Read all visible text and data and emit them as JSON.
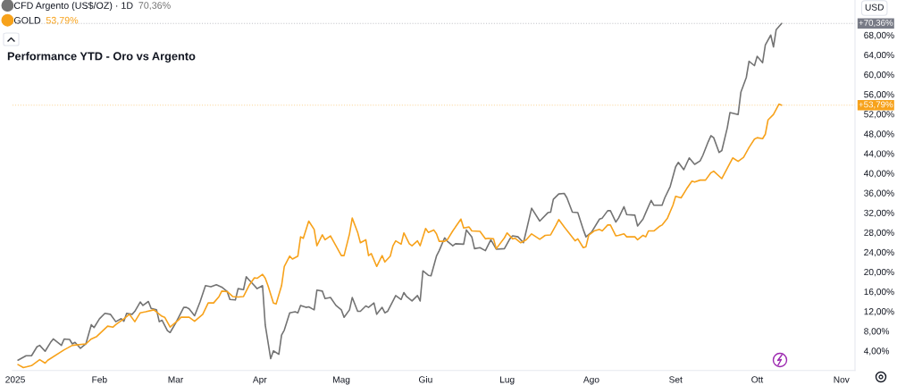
{
  "chart_data": {
    "type": "line",
    "title": "Performance YTD - Oro vs Argento",
    "ylabel": "USD",
    "legend": "top left",
    "xlim": [
      "2024-12-31",
      "2025-11-06"
    ],
    "xticks": [
      {
        "value": "2025-01-01",
        "label": "2025"
      },
      {
        "value": "2025-02-01",
        "label": "Feb"
      },
      {
        "value": "2025-03-01",
        "label": "Mar"
      },
      {
        "value": "2025-04-01",
        "label": "Apr"
      },
      {
        "value": "2025-05-01",
        "label": "Mag"
      },
      {
        "value": "2025-06-01",
        "label": "Giu"
      },
      {
        "value": "2025-07-01",
        "label": "Lug"
      },
      {
        "value": "2025-08-01",
        "label": "Ago"
      },
      {
        "value": "2025-09-01",
        "label": "Set"
      },
      {
        "value": "2025-10-01",
        "label": "Ott"
      },
      {
        "value": "2025-11-01",
        "label": "Nov"
      }
    ],
    "ylim": [
      0,
      75
    ],
    "yticks": [
      {
        "value": 4,
        "label": "4,00%"
      },
      {
        "value": 8,
        "label": "8,00%"
      },
      {
        "value": 12,
        "label": "12,00%"
      },
      {
        "value": 16,
        "label": "16,00%"
      },
      {
        "value": 20,
        "label": "20,00%"
      },
      {
        "value": 24,
        "label": "24,00%"
      },
      {
        "value": 28,
        "label": "28,00%"
      },
      {
        "value": 32,
        "label": "32,00%"
      },
      {
        "value": 36,
        "label": "36,00%"
      },
      {
        "value": 40,
        "label": "40,00%"
      },
      {
        "value": 44,
        "label": "44,00%"
      },
      {
        "value": 48,
        "label": "48,00%"
      },
      {
        "value": 52,
        "label": "52,00%"
      },
      {
        "value": 56,
        "label": "56,00%"
      },
      {
        "value": 60,
        "label": "60,00%"
      },
      {
        "value": 64,
        "label": "64,00%"
      },
      {
        "value": 68,
        "label": "68,00%"
      }
    ],
    "ref_lines": [
      {
        "axis": "y",
        "value": 70.36,
        "label": "+70,36%",
        "color": "#787b86",
        "line_style": "dotted"
      },
      {
        "axis": "y",
        "value": 53.79,
        "label": "+53,79%",
        "color": "#f7a21b",
        "line_style": "dotted"
      }
    ],
    "annotations": [
      "70,36%",
      "53,79%"
    ],
    "series": [
      {
        "name": "CFD Argento (US$/OZ) · 1D",
        "color": "#737373",
        "x": [
          "2025-01-02",
          "2025-01-05",
          "2025-01-07",
          "2025-01-09",
          "2025-01-10",
          "2025-01-12",
          "2025-01-14",
          "2025-01-15",
          "2025-01-18",
          "2025-01-19",
          "2025-01-21",
          "2025-01-22",
          "2025-01-23",
          "2025-01-25",
          "2025-01-27",
          "2025-01-29",
          "2025-01-30",
          "2025-02-01",
          "2025-02-03",
          "2025-02-05",
          "2025-02-07",
          "2025-02-09",
          "2025-02-10",
          "2025-02-11",
          "2025-02-13",
          "2025-02-14",
          "2025-02-16",
          "2025-02-17",
          "2025-02-19",
          "2025-02-20",
          "2025-02-22",
          "2025-02-23",
          "2025-02-24",
          "2025-02-26",
          "2025-02-27",
          "2025-03-01",
          "2025-03-04",
          "2025-03-05",
          "2025-03-06",
          "2025-03-08",
          "2025-03-10",
          "2025-03-12",
          "2025-03-14",
          "2025-03-16",
          "2025-03-18",
          "2025-03-20",
          "2025-03-21",
          "2025-03-23",
          "2025-03-24",
          "2025-03-26",
          "2025-03-27",
          "2025-03-28",
          "2025-03-30",
          "2025-03-31",
          "2025-04-02",
          "2025-04-03",
          "2025-04-05",
          "2025-04-06",
          "2025-04-08",
          "2025-04-09",
          "2025-04-10",
          "2025-04-12",
          "2025-04-14",
          "2025-04-15",
          "2025-04-16",
          "2025-04-18",
          "2025-04-19",
          "2025-04-21",
          "2025-04-22",
          "2025-04-24",
          "2025-04-25",
          "2025-04-27",
          "2025-04-29",
          "2025-05-01",
          "2025-05-02",
          "2025-05-04",
          "2025-05-05",
          "2025-05-07",
          "2025-05-08",
          "2025-05-10",
          "2025-05-11",
          "2025-05-13",
          "2025-05-14",
          "2025-05-16",
          "2025-05-17",
          "2025-05-18",
          "2025-05-20",
          "2025-05-21",
          "2025-05-23",
          "2025-05-24",
          "2025-05-25",
          "2025-05-27",
          "2025-05-29",
          "2025-05-30",
          "2025-05-31",
          "2025-06-02",
          "2025-06-03",
          "2025-06-05",
          "2025-06-06",
          "2025-06-08",
          "2025-06-09",
          "2025-06-11",
          "2025-06-12",
          "2025-06-15",
          "2025-06-16",
          "2025-06-18",
          "2025-06-19",
          "2025-06-21",
          "2025-06-23",
          "2025-06-25",
          "2025-06-27",
          "2025-06-30",
          "2025-07-02",
          "2025-07-03",
          "2025-07-05",
          "2025-07-07",
          "2025-07-08",
          "2025-07-10",
          "2025-07-13",
          "2025-07-16",
          "2025-07-17",
          "2025-07-18",
          "2025-07-20",
          "2025-07-22",
          "2025-07-23",
          "2025-07-25",
          "2025-07-27",
          "2025-07-29",
          "2025-07-30",
          "2025-08-01",
          "2025-08-04",
          "2025-08-05",
          "2025-08-07",
          "2025-08-08",
          "2025-08-10",
          "2025-08-11",
          "2025-08-13",
          "2025-08-14",
          "2025-08-17",
          "2025-08-18",
          "2025-08-20",
          "2025-08-21",
          "2025-08-23",
          "2025-08-24",
          "2025-08-27",
          "2025-08-28",
          "2025-08-30",
          "2025-09-01",
          "2025-09-02",
          "2025-09-04",
          "2025-09-06",
          "2025-09-08",
          "2025-09-10",
          "2025-09-11",
          "2025-09-13",
          "2025-09-14",
          "2025-09-15",
          "2025-09-17",
          "2025-09-18",
          "2025-09-20",
          "2025-09-21",
          "2025-09-24",
          "2025-09-25",
          "2025-09-27",
          "2025-09-28",
          "2025-09-30",
          "2025-10-01",
          "2025-10-03",
          "2025-10-04",
          "2025-10-06",
          "2025-10-07",
          "2025-10-08",
          "2025-10-10"
        ],
        "values": [
          2.1,
          3.0,
          3.0,
          4.8,
          5.1,
          3.9,
          5.7,
          6.4,
          5.1,
          6.4,
          6.3,
          5.4,
          5.7,
          4.5,
          5.4,
          9.3,
          8.7,
          10.5,
          11.6,
          11.4,
          9.9,
          10.5,
          10.0,
          11.6,
          11.4,
          12.0,
          13.9,
          13.2,
          14.0,
          12.6,
          12.3,
          9.9,
          10.2,
          8.1,
          7.7,
          9.6,
          12.8,
          12.8,
          12.5,
          11.1,
          13.9,
          17.2,
          17.0,
          17.4,
          16.9,
          16.0,
          14.4,
          14.3,
          16.6,
          16.4,
          19.0,
          18.4,
          17.2,
          16.6,
          17.2,
          9.2,
          2.4,
          4.0,
          3.3,
          7.2,
          8.2,
          11.7,
          11.9,
          11.7,
          13.2,
          12.8,
          12.9,
          12.3,
          16.3,
          16.1,
          14.6,
          14.8,
          13.2,
          12.3,
          10.8,
          12.3,
          14.8,
          12.0,
          12.0,
          13.1,
          12.8,
          13.7,
          11.4,
          12.8,
          11.7,
          12.0,
          14.1,
          15.2,
          14.4,
          15.8,
          15.0,
          14.1,
          15.2,
          14.1,
          20.2,
          19.3,
          19.2,
          23.2,
          24.3,
          26.9,
          26.2,
          25.3,
          25.7,
          25.6,
          28.5,
          27.1,
          24.7,
          24.9,
          24.3,
          26.5,
          24.6,
          24.7,
          26.7,
          27.3,
          27.1,
          25.9,
          28.2,
          32.9,
          30.3,
          32.0,
          32.1,
          34.7,
          35.8,
          35.9,
          35.0,
          32.1,
          32.0,
          28.6,
          27.1,
          28.0,
          30.7,
          30.9,
          32.4,
          32.4,
          30.1,
          30.9,
          33.2,
          31.6,
          31.5,
          29.3,
          30.7,
          32.0,
          34.5,
          33.5,
          33.5,
          35.0,
          37.3,
          41.3,
          42.2,
          40.7,
          43.1,
          41.8,
          42.5,
          43.6,
          46.4,
          47.6,
          47.2,
          44.2,
          44.6,
          49.2,
          52.3,
          51.9,
          56.4,
          59.4,
          62.7,
          61.8,
          63.7,
          62.4,
          66.0,
          68.0,
          65.6,
          69.1,
          70.36
        ]
      },
      {
        "name": "GOLD",
        "color": "#f7a21b",
        "x": [
          "2025-01-02",
          "2025-01-04",
          "2025-01-07",
          "2025-01-10",
          "2025-01-12",
          "2025-01-13",
          "2025-01-19",
          "2025-01-22",
          "2025-01-27",
          "2025-01-29",
          "2025-01-31",
          "2025-02-04",
          "2025-02-06",
          "2025-02-07",
          "2025-02-10",
          "2025-02-12",
          "2025-02-14",
          "2025-02-16",
          "2025-02-18",
          "2025-02-21",
          "2025-02-24",
          "2025-02-25",
          "2025-02-27",
          "2025-03-02",
          "2025-03-03",
          "2025-03-06",
          "2025-03-08",
          "2025-03-11",
          "2025-03-13",
          "2025-03-15",
          "2025-03-17",
          "2025-03-18",
          "2025-03-20",
          "2025-03-22",
          "2025-03-24",
          "2025-03-26",
          "2025-03-28",
          "2025-03-30",
          "2025-03-31",
          "2025-04-02",
          "2025-04-03",
          "2025-04-04",
          "2025-04-06",
          "2025-04-07",
          "2025-04-09",
          "2025-04-10",
          "2025-04-12",
          "2025-04-13",
          "2025-04-15",
          "2025-04-16",
          "2025-04-17",
          "2025-04-19",
          "2025-04-21",
          "2025-04-22",
          "2025-04-24",
          "2025-04-25",
          "2025-04-27",
          "2025-04-29",
          "2025-05-01",
          "2025-05-02",
          "2025-05-04",
          "2025-05-05",
          "2025-05-07",
          "2025-05-08",
          "2025-05-10",
          "2025-05-11",
          "2025-05-12",
          "2025-05-14",
          "2025-05-16",
          "2025-05-17",
          "2025-05-19",
          "2025-05-20",
          "2025-05-21",
          "2025-05-23",
          "2025-05-24",
          "2025-05-26",
          "2025-05-27",
          "2025-05-29",
          "2025-05-30",
          "2025-06-01",
          "2025-06-02",
          "2025-06-04",
          "2025-06-05",
          "2025-06-06",
          "2025-06-08",
          "2025-06-09",
          "2025-06-11",
          "2025-06-14",
          "2025-06-15",
          "2025-06-17",
          "2025-06-18",
          "2025-06-21",
          "2025-06-23",
          "2025-06-24",
          "2025-06-26",
          "2025-06-27",
          "2025-06-30",
          "2025-07-01",
          "2025-07-03",
          "2025-07-04",
          "2025-07-06",
          "2025-07-08",
          "2025-07-10",
          "2025-07-13",
          "2025-07-15",
          "2025-07-17",
          "2025-07-19",
          "2025-07-20",
          "2025-07-22",
          "2025-07-24",
          "2025-07-26",
          "2025-07-27",
          "2025-07-29",
          "2025-07-30",
          "2025-07-31",
          "2025-08-02",
          "2025-08-04",
          "2025-08-05",
          "2025-08-07",
          "2025-08-08",
          "2025-08-10",
          "2025-08-11",
          "2025-08-13",
          "2025-08-14",
          "2025-08-17",
          "2025-08-18",
          "2025-08-20",
          "2025-08-21",
          "2025-08-22",
          "2025-08-24",
          "2025-08-26",
          "2025-08-27",
          "2025-08-29",
          "2025-08-31",
          "2025-09-01",
          "2025-09-03",
          "2025-09-05",
          "2025-09-07",
          "2025-09-08",
          "2025-09-10",
          "2025-09-12",
          "2025-09-14",
          "2025-09-15",
          "2025-09-18",
          "2025-09-20",
          "2025-09-22",
          "2025-09-24",
          "2025-09-26",
          "2025-09-28",
          "2025-09-30",
          "2025-10-01",
          "2025-10-03",
          "2025-10-04",
          "2025-10-05",
          "2025-10-07",
          "2025-10-09",
          "2025-10-10"
        ],
        "values": [
          1.2,
          0.6,
          1.0,
          2.2,
          1.5,
          2.1,
          4.2,
          5.1,
          5.4,
          6.4,
          6.9,
          9.0,
          8.8,
          9.3,
          10.5,
          11.4,
          9.9,
          11.7,
          11.9,
          12.3,
          11.0,
          10.8,
          8.8,
          10.2,
          10.8,
          10.8,
          10.0,
          11.4,
          13.7,
          13.7,
          15.0,
          16.1,
          16.0,
          15.0,
          14.9,
          15.0,
          17.2,
          18.8,
          18.7,
          19.5,
          18.7,
          17.2,
          13.7,
          13.5,
          17.2,
          21.1,
          23.2,
          22.6,
          23.2,
          27.1,
          26.8,
          30.3,
          28.6,
          25.3,
          27.5,
          26.5,
          27.3,
          25.3,
          23.3,
          23.3,
          27.7,
          30.9,
          28.0,
          25.9,
          26.5,
          23.3,
          23.7,
          21.1,
          23.3,
          22.0,
          23.2,
          25.3,
          26.3,
          25.6,
          27.9,
          25.7,
          25.3,
          26.3,
          25.3,
          28.8,
          28.0,
          28.5,
          27.7,
          26.2,
          26.2,
          26.5,
          28.3,
          30.7,
          28.9,
          29.1,
          28.3,
          28.2,
          26.7,
          26.8,
          26.7,
          24.7,
          26.9,
          27.9,
          26.7,
          26.8,
          25.9,
          26.5,
          27.7,
          26.6,
          27.4,
          27.5,
          29.5,
          30.6,
          29.1,
          27.7,
          26.3,
          26.7,
          24.9,
          25.1,
          27.4,
          28.3,
          28.6,
          28.3,
          29.5,
          29.5,
          27.3,
          27.4,
          27.7,
          27.1,
          27.1,
          26.5,
          27.4,
          27.1,
          28.3,
          28.3,
          29.2,
          29.5,
          30.9,
          33.5,
          35.3,
          35.0,
          36.8,
          38.4,
          38.2,
          38.6,
          38.6,
          40.1,
          40.4,
          38.9,
          41.0,
          43.1,
          42.4,
          43.2,
          45.2,
          46.9,
          47.2,
          47.0,
          47.9,
          50.8,
          51.9,
          54.0,
          53.79
        ]
      }
    ]
  }
}
